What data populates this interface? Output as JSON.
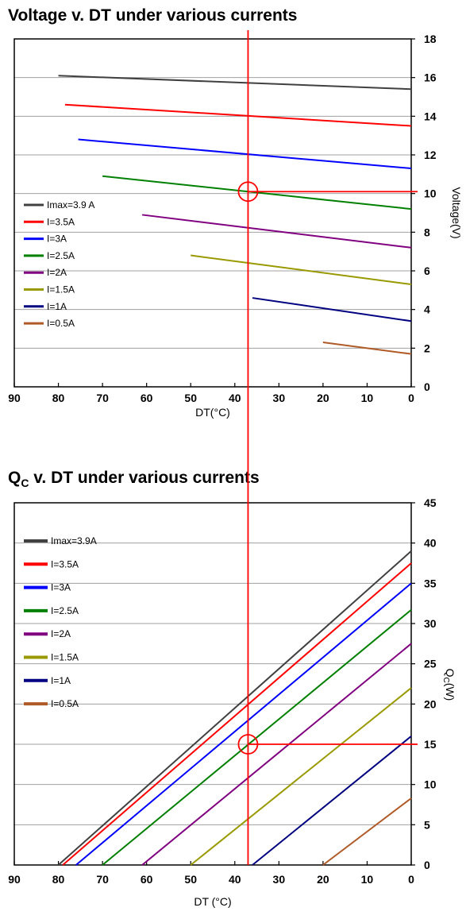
{
  "chart_data": [
    {
      "type": "line",
      "title": "Voltage v. DT under various currents",
      "xlabel": "DT(°C)",
      "ylabel": "Voltage(V)",
      "xlim": [
        90,
        0
      ],
      "ylim": [
        0,
        18
      ],
      "x_ticks": [
        "90",
        "80",
        "70",
        "60",
        "50",
        "40",
        "30",
        "20",
        "10",
        "0"
      ],
      "y_ticks": [
        "0",
        "2",
        "4",
        "6",
        "8",
        "10",
        "12",
        "14",
        "16",
        "18"
      ],
      "grid": true,
      "legend_position": "left",
      "series": [
        {
          "name": "Imax=3.9 A",
          "color": "#404040",
          "points": [
            [
              80,
              16.1
            ],
            [
              0,
              15.4
            ]
          ]
        },
        {
          "name": "I=3.5A",
          "color": "#ff0000",
          "points": [
            [
              78.5,
              14.6
            ],
            [
              0,
              13.5
            ]
          ]
        },
        {
          "name": "I=3A",
          "color": "#0000ff",
          "points": [
            [
              75.5,
              12.8
            ],
            [
              0,
              11.3
            ]
          ]
        },
        {
          "name": "I=2.5A",
          "color": "#008000",
          "points": [
            [
              70,
              10.9
            ],
            [
              0,
              9.2
            ]
          ]
        },
        {
          "name": "I=2A",
          "color": "#800080",
          "points": [
            [
              61,
              8.9
            ],
            [
              0,
              7.2
            ]
          ]
        },
        {
          "name": "I=1.5A",
          "color": "#999900",
          "points": [
            [
              50,
              6.8
            ],
            [
              0,
              5.3
            ]
          ]
        },
        {
          "name": "I=1A",
          "color": "#000080",
          "points": [
            [
              36,
              4.6
            ],
            [
              0,
              3.4
            ]
          ]
        },
        {
          "name": "I=0.5A",
          "color": "#b05a28",
          "points": [
            [
              20,
              2.3
            ],
            [
              0,
              1.7
            ]
          ]
        }
      ],
      "annotation": {
        "x": 37,
        "y": 10.1,
        "color": "#ff0000"
      }
    },
    {
      "type": "line",
      "title_main": "Q",
      "title_sub": "C",
      "title_rest": " v. DT under various currents",
      "xlabel": "DT (°C)",
      "ylabel_main": "Q",
      "ylabel_sub": "C",
      "ylabel_rest": "(W)",
      "xlim": [
        90,
        0
      ],
      "ylim": [
        0,
        45
      ],
      "x_ticks": [
        "90",
        "80",
        "70",
        "60",
        "50",
        "40",
        "30",
        "20",
        "10",
        "0"
      ],
      "y_ticks": [
        "0",
        "5",
        "10",
        "15",
        "20",
        "25",
        "30",
        "35",
        "40",
        "45"
      ],
      "grid": true,
      "legend_position": "left",
      "series": [
        {
          "name": "Imax=3.9A",
          "color": "#404040",
          "points": [
            [
              80,
              0
            ],
            [
              0,
              39
            ]
          ]
        },
        {
          "name": "I=3.5A",
          "color": "#ff0000",
          "points": [
            [
              79,
              0
            ],
            [
              0,
              37.5
            ]
          ]
        },
        {
          "name": "I=3A",
          "color": "#0000ff",
          "points": [
            [
              76,
              0
            ],
            [
              0,
              35
            ]
          ]
        },
        {
          "name": "I=2.5A",
          "color": "#008000",
          "points": [
            [
              70,
              0
            ],
            [
              0,
              31.7
            ]
          ]
        },
        {
          "name": "I=2A",
          "color": "#800080",
          "points": [
            [
              61,
              0
            ],
            [
              0,
              27.5
            ]
          ]
        },
        {
          "name": "I=1.5A",
          "color": "#999900",
          "points": [
            [
              50,
              0
            ],
            [
              0,
              22
            ]
          ]
        },
        {
          "name": "I=1A",
          "color": "#000080",
          "points": [
            [
              36,
              0
            ],
            [
              0,
              16
            ]
          ]
        },
        {
          "name": "I=0.5A",
          "color": "#b05a28",
          "points": [
            [
              20,
              0
            ],
            [
              0,
              8.3
            ]
          ]
        }
      ],
      "annotation": {
        "x": 37,
        "y": 15,
        "color": "#ff0000"
      }
    }
  ]
}
